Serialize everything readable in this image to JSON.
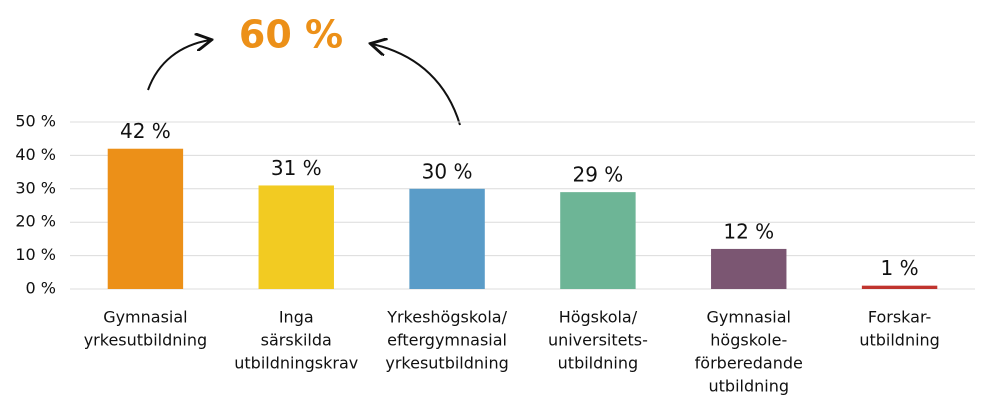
{
  "chart_data": {
    "type": "bar",
    "annotation": "60 %",
    "categories": [
      [
        "Gymnasial",
        "yrkesutbildning"
      ],
      [
        "Inga",
        "särskilda",
        "utbildningskrav"
      ],
      [
        "Yrkeshögskola/",
        "eftergymnasial",
        "yrkesutbildning"
      ],
      [
        "Högskola/",
        "universitets-",
        "utbildning"
      ],
      [
        "Gymnasial",
        "högskole-",
        "förberedande",
        "utbildning"
      ],
      [
        "Forskar-",
        "utbildning"
      ]
    ],
    "values": [
      42,
      31,
      30,
      29,
      12,
      1
    ],
    "value_labels": [
      "42 %",
      "31 %",
      "30 %",
      "29 %",
      "12 %",
      "1 %"
    ],
    "colors": [
      "#ec9018",
      "#f2cb22",
      "#5a9cc8",
      "#6db596",
      "#7b5672",
      "#c0342e"
    ],
    "ylim": [
      0,
      50
    ],
    "yticks": [
      {
        "value": 0,
        "label": "0 %"
      },
      {
        "value": 10,
        "label": "10 %"
      },
      {
        "value": 20,
        "label": "20 %"
      },
      {
        "value": 30,
        "label": "30 %"
      },
      {
        "value": 40,
        "label": "40 %"
      },
      {
        "value": 50,
        "label": "50 %"
      }
    ],
    "grid": true
  }
}
